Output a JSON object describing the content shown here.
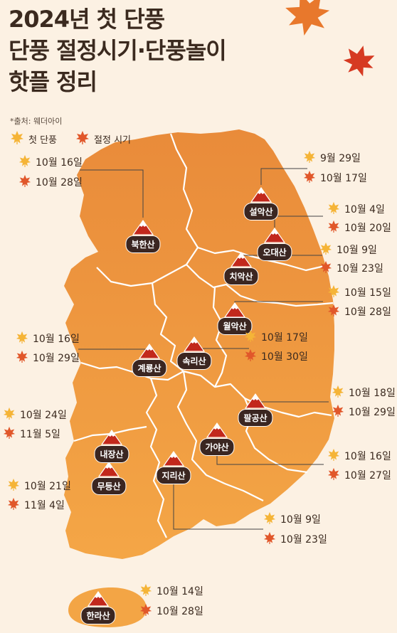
{
  "title": {
    "line1": "2024년 첫 단풍",
    "line2": "단풍 절정시기·단풍놀이",
    "line3": "핫플 정리"
  },
  "source": "*출처: 웨더아이",
  "legend": {
    "first_label": "첫 단풍",
    "peak_label": "절정 시기"
  },
  "colors": {
    "first_leaf": "#f5b437",
    "peak_leaf": "#e1572a",
    "map_top": "#e98b3a",
    "map_bottom": "#f4a646",
    "label_bg": "#3b2621"
  },
  "mountains": [
    {
      "name": "북한산",
      "first": "10월 16일",
      "peak": "10월 28일"
    },
    {
      "name": "설악산",
      "first": "9월 29일",
      "peak": "10월 17일"
    },
    {
      "name": "오대산",
      "first": "10월 4일",
      "peak": "10월 20일"
    },
    {
      "name": "치악산",
      "first": "10월 9일",
      "peak": "10월 23일"
    },
    {
      "name": "월악산",
      "first": "10월 15일",
      "peak": "10월 28일"
    },
    {
      "name": "속리산",
      "first": "10월 17일",
      "peak": "10월 30일"
    },
    {
      "name": "계룡산",
      "first": "10월 16일",
      "peak": "10월 29일"
    },
    {
      "name": "팔공산",
      "first": "10월 18일",
      "peak": "10월 29일"
    },
    {
      "name": "내장산",
      "first": "10월 24일",
      "peak": "11월 5일"
    },
    {
      "name": "가야산",
      "first": "10월 16일",
      "peak": "10월 27일"
    },
    {
      "name": "무등산",
      "first": "10월 21일",
      "peak": "11월 4일"
    },
    {
      "name": "지리산",
      "first": "10월 9일",
      "peak": "10월 23일"
    },
    {
      "name": "한라산",
      "first": "10월 14일",
      "peak": "10월 28일"
    }
  ]
}
